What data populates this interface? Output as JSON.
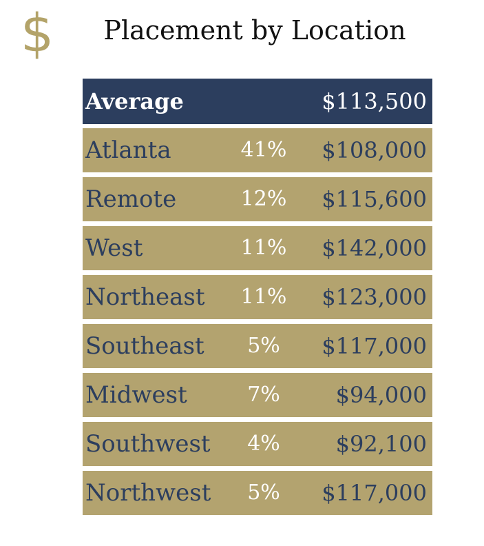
{
  "icon": "dollar-sign-icon",
  "icon_glyph": "$",
  "colors": {
    "navy": "#2c3e5e",
    "gold": "#b3a36f",
    "icon_gold": "#b3a369"
  },
  "chart_data": {
    "type": "table",
    "title": "Placement by Location",
    "header": {
      "label": "Average",
      "salary": "$113,500"
    },
    "rows": [
      {
        "location": "Atlanta",
        "percent": "41%",
        "salary": "$108,000"
      },
      {
        "location": "Remote",
        "percent": "12%",
        "salary": "$115,600"
      },
      {
        "location": "West",
        "percent": "11%",
        "salary": "$142,000"
      },
      {
        "location": "Northeast",
        "percent": "11%",
        "salary": "$123,000"
      },
      {
        "location": "Southeast",
        "percent": "5%",
        "salary": "$117,000"
      },
      {
        "location": "Midwest",
        "percent": "7%",
        "salary": "$94,000"
      },
      {
        "location": "Southwest",
        "percent": "4%",
        "salary": "$92,100"
      },
      {
        "location": "Northwest",
        "percent": "5%",
        "salary": "$117,000"
      }
    ]
  }
}
